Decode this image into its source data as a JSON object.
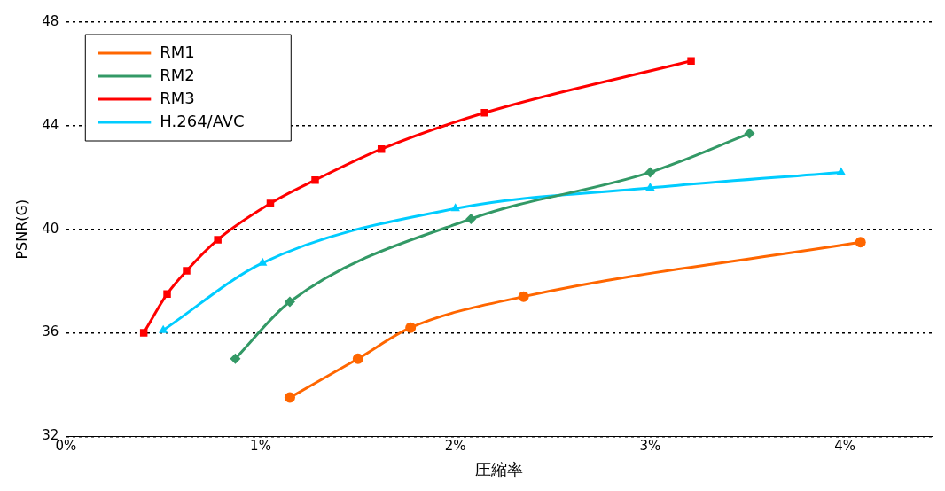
{
  "chart_data": {
    "type": "line",
    "xlabel": "圧縮率",
    "ylabel": "PSNR(G)",
    "xlim": [
      0,
      4.45
    ],
    "xticks": [
      {
        "value": 0,
        "label": "0%"
      },
      {
        "value": 1,
        "label": "1%"
      },
      {
        "value": 2,
        "label": "2%"
      },
      {
        "value": 3,
        "label": "3%"
      },
      {
        "value": 4,
        "label": "4%"
      }
    ],
    "ylim": [
      32,
      48
    ],
    "yticks": [
      32,
      36,
      40,
      44,
      48
    ],
    "grid": "y",
    "legend": "top left",
    "series": [
      {
        "name": "RM1",
        "color": "#ff6600",
        "marker": "circle",
        "x": [
          1.15,
          1.5,
          1.77,
          2.35,
          4.08
        ],
        "values": [
          33.5,
          35.0,
          36.2,
          37.4,
          39.5
        ]
      },
      {
        "name": "RM2",
        "color": "#339966",
        "marker": "diamond",
        "x": [
          0.87,
          1.15,
          2.08,
          3.0,
          3.51
        ],
        "values": [
          35.0,
          37.2,
          40.4,
          42.2,
          43.7
        ]
      },
      {
        "name": "RM3",
        "color": "#ff0000",
        "marker": "square",
        "x": [
          0.4,
          0.52,
          0.62,
          0.78,
          1.05,
          1.28,
          1.62,
          2.15,
          3.21
        ],
        "values": [
          36.0,
          37.5,
          38.4,
          39.6,
          41.0,
          41.9,
          43.1,
          44.5,
          46.5
        ]
      },
      {
        "name": "H.264/AVC",
        "color": "#00ccff",
        "marker": "triangle",
        "x": [
          0.5,
          1.01,
          2.0,
          3.0,
          3.98
        ],
        "values": [
          36.1,
          38.7,
          40.8,
          41.6,
          42.2
        ]
      }
    ]
  }
}
